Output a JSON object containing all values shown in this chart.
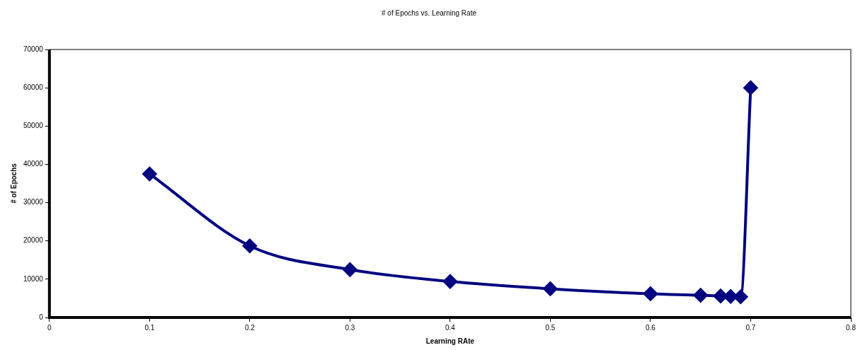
{
  "chart_data": {
    "type": "line",
    "title": "# of Epochs vs. Learning Rate",
    "xlabel": "Learning RAte",
    "ylabel": "# of Epochs",
    "x": [
      0.1,
      0.2,
      0.3,
      0.4,
      0.5,
      0.6,
      0.65,
      0.67,
      0.68,
      0.69,
      0.7
    ],
    "series": [
      {
        "color": "#000080",
        "values": [
          37500,
          18700,
          12500,
          9400,
          7500,
          6200,
          5800,
          5600,
          5500,
          5400,
          60000
        ]
      }
    ],
    "xlim": [
      0,
      0.8
    ],
    "xticks": [
      0,
      0.1,
      0.2,
      0.3,
      0.4,
      0.5,
      0.6,
      0.7,
      0.8
    ],
    "ylim": [
      0,
      70000
    ],
    "yticks": [
      0,
      10000,
      20000,
      30000,
      40000,
      50000,
      60000,
      70000
    ],
    "marker": "diamond"
  }
}
